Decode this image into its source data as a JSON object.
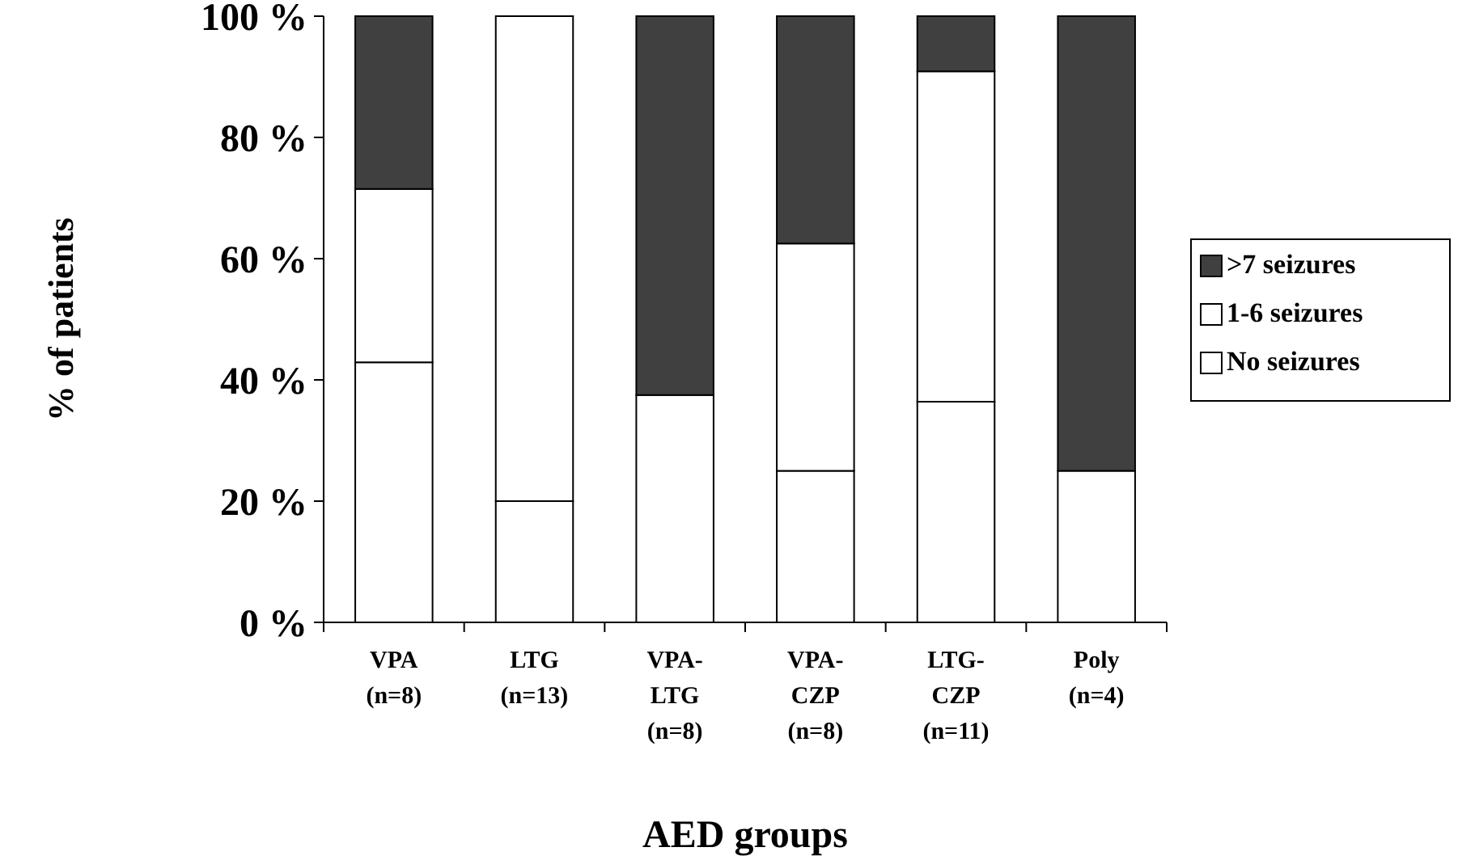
{
  "chart_data": {
    "type": "bar",
    "stacked": true,
    "xlabel": "AED groups",
    "ylabel": "% of patients",
    "categories": [
      "VPA\n(n=8)",
      "LTG\n(n=13)",
      "VPA-\nLTG\n(n=8)",
      "VPA-\nCZP\n(n=8)",
      "LTG-\nCZP\n(n=11)",
      "Poly\n(n=4)"
    ],
    "series": [
      {
        "name": "No seizures",
        "color": "#ffffff",
        "values": [
          42.9,
          20,
          37.5,
          25,
          36.4,
          25
        ]
      },
      {
        "name": "1-6 seizures",
        "color": "#ffffff",
        "values": [
          28.6,
          80,
          0,
          37.5,
          54.5,
          0
        ]
      },
      {
        "name": ">7 seizures",
        "color": "#404040",
        "values": [
          28.5,
          0,
          62.5,
          37.5,
          9.1,
          75
        ]
      }
    ],
    "ylim": [
      0,
      100
    ],
    "yticks": [
      {
        "value": 0,
        "label": "0 %"
      },
      {
        "value": 20,
        "label": "20 %"
      },
      {
        "value": 40,
        "label": "40 %"
      },
      {
        "value": 60,
        "label": "60 %"
      },
      {
        "value": 80,
        "label": "80 %"
      },
      {
        "value": 100,
        "label": "100 %"
      }
    ],
    "grid": false,
    "legend": "right"
  }
}
